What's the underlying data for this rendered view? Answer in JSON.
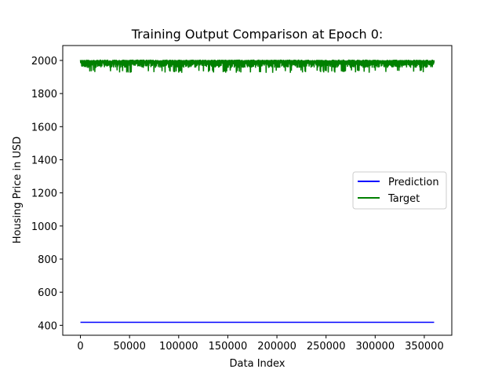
{
  "chart_data": {
    "type": "line",
    "title": "Training Output Comparison at Epoch 0:",
    "xlabel": "Data Index",
    "ylabel": "Housing Price in USD",
    "xlim": [
      -18000,
      378000
    ],
    "ylim": [
      340,
      2090
    ],
    "xticks": [
      0,
      50000,
      100000,
      150000,
      200000,
      250000,
      300000,
      350000
    ],
    "yticks": [
      400,
      600,
      800,
      1000,
      1200,
      1400,
      1600,
      1800,
      2000
    ],
    "grid": false,
    "legend": {
      "position": "center-right"
    },
    "series": [
      {
        "name": "Prediction",
        "color": "#0000ff",
        "x": [
          0,
          360000
        ],
        "y": [
          418,
          418
        ]
      },
      {
        "name": "Target",
        "color": "#008000",
        "noisy": true,
        "x": [
          0,
          360000
        ],
        "y_max": 2005,
        "y_min": 1925,
        "y_typical": 1975
      }
    ]
  }
}
